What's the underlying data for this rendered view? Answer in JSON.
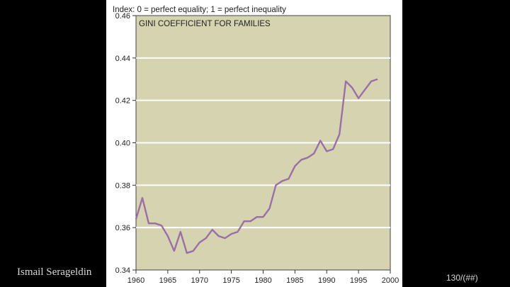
{
  "slide": {
    "author": "Ismail Serageldin",
    "page_number": "130/(##)"
  },
  "colors": {
    "plot_background": "#d6d4b0",
    "grid": "#ffffff",
    "line": "#9a6fa8",
    "text": "#222222"
  },
  "chart_data": {
    "type": "line",
    "title": "GINI COEFFICIENT FOR FAMILIES",
    "ylabel": "Index: 0 = perfect equality; 1 = perfect inequality",
    "xlabel": "",
    "xlim": [
      1960,
      2000
    ],
    "ylim": [
      0.34,
      0.46
    ],
    "xticks": [
      1960,
      1965,
      1970,
      1975,
      1980,
      1985,
      1990,
      1995,
      2000
    ],
    "yticks": [
      "0.34",
      "0.36",
      "0.38",
      "0.40",
      "0.42",
      "0.44",
      "0.46"
    ],
    "grid": true,
    "series": [
      {
        "x": [
          1960,
          1961,
          1962,
          1963,
          1964,
          1965,
          1966,
          1967,
          1968,
          1969,
          1970,
          1971,
          1972,
          1973,
          1974,
          1975,
          1976,
          1977,
          1978,
          1979,
          1980,
          1981,
          1982,
          1983,
          1984,
          1985,
          1986,
          1987,
          1988,
          1989,
          1990,
          1991,
          1992,
          1993,
          1994,
          1995,
          1996,
          1997,
          1998
        ],
        "values": [
          0.364,
          0.374,
          0.362,
          0.362,
          0.361,
          0.356,
          0.349,
          0.358,
          0.348,
          0.349,
          0.353,
          0.355,
          0.359,
          0.356,
          0.355,
          0.357,
          0.358,
          0.363,
          0.363,
          0.365,
          0.365,
          0.369,
          0.38,
          0.382,
          0.383,
          0.389,
          0.392,
          0.393,
          0.395,
          0.401,
          0.396,
          0.397,
          0.404,
          0.429,
          0.426,
          0.421,
          0.425,
          0.429,
          0.43
        ]
      }
    ]
  }
}
